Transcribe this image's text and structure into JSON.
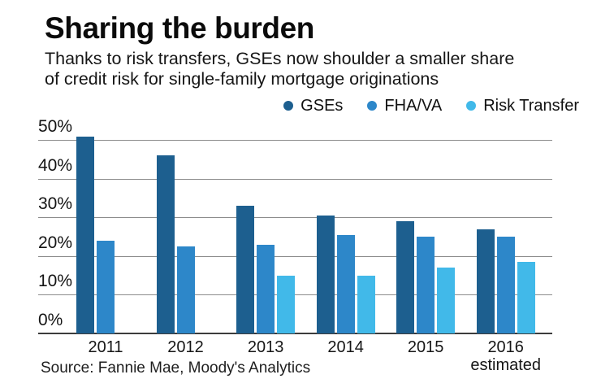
{
  "header": {
    "title": "Sharing the burden",
    "subtitle_lines": [
      "Thanks to risk transfers, GSEs now shoulder a smaller share",
      "of credit risk for single-family mortgage originations"
    ]
  },
  "legend": [
    {
      "label": "GSEs",
      "color": "#1d5f8f"
    },
    {
      "label": "FHA/VA",
      "color": "#2d87c9"
    },
    {
      "label": "Risk Transfer",
      "color": "#41b9e9"
    }
  ],
  "source": "Source: Fannie Mae, Moody's Analytics",
  "chart_data": {
    "type": "bar",
    "title": "Sharing the burden",
    "subtitle": "Thanks to risk transfers, GSEs now shoulder a smaller share of credit risk for single-family mortgage originations",
    "categories": [
      "2011",
      "2012",
      "2013",
      "2014",
      "2015",
      "2016"
    ],
    "x_sub_label": {
      "category": "2016",
      "label": "estimated"
    },
    "series": [
      {
        "name": "GSEs",
        "color": "#1d5f8f",
        "values": [
          51,
          46,
          33,
          30.5,
          29,
          27
        ]
      },
      {
        "name": "FHA/VA",
        "color": "#2d87c9",
        "values": [
          24,
          22.5,
          23,
          25.5,
          25,
          25
        ]
      },
      {
        "name": "Risk Transfer",
        "color": "#41b9e9",
        "values": [
          null,
          null,
          15,
          15,
          17,
          18.5
        ]
      }
    ],
    "unit": "%",
    "xlabel": "",
    "ylabel": "",
    "ylim": [
      0,
      50
    ],
    "yticks": [
      0,
      10,
      20,
      30,
      40,
      50
    ],
    "ytick_suffix": "%",
    "grid": true,
    "legend_position": "top-right",
    "source": "Source: Fannie Mae, Moody's Analytics"
  },
  "style": {
    "gridline_color": "#8c8c8c",
    "axis_line_color": "#3c3c3c"
  }
}
